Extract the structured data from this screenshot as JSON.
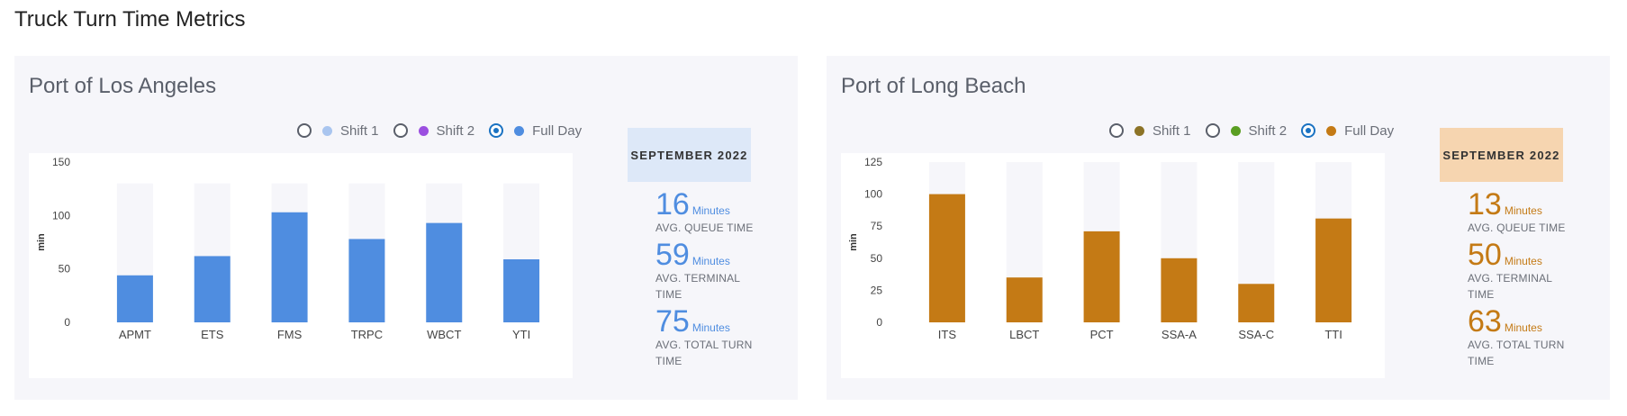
{
  "page_title": "Truck Turn Time Metrics",
  "panels": [
    {
      "title": "Port of Los Angeles",
      "legend": [
        {
          "label": "Shift 1",
          "color": "#a9c5ef",
          "checked": false
        },
        {
          "label": "Shift 2",
          "color": "#9b4fe0",
          "checked": false
        },
        {
          "label": "Full Day",
          "color": "#4f8de0",
          "checked": true
        }
      ],
      "month": "SEPTEMBER 2022",
      "month_bg": "#dde8f8",
      "metrics": [
        {
          "value": "16",
          "unit": "Minutes",
          "label": "AVG. QUEUE TIME"
        },
        {
          "value": "59",
          "unit": "Minutes",
          "label": "AVG. TERMINAL TIME"
        },
        {
          "value": "75",
          "unit": "Minutes",
          "label": "AVG. TOTAL TURN TIME"
        }
      ]
    },
    {
      "title": "Port of Long Beach",
      "legend": [
        {
          "label": "Shift 1",
          "color": "#8c7326",
          "checked": false
        },
        {
          "label": "Shift 2",
          "color": "#5a9e22",
          "checked": false
        },
        {
          "label": "Full Day",
          "color": "#c47a15",
          "checked": true
        }
      ],
      "month": "SEPTEMBER 2022",
      "month_bg": "#f6d5b0",
      "metrics": [
        {
          "value": "13",
          "unit": "Minutes",
          "label": "AVG. QUEUE TIME"
        },
        {
          "value": "50",
          "unit": "Minutes",
          "label": "AVG. TERMINAL TIME"
        },
        {
          "value": "63",
          "unit": "Minutes",
          "label": "AVG. TOTAL TURN TIME"
        }
      ]
    }
  ],
  "chart_data": [
    {
      "type": "bar",
      "ylabel": "min",
      "categories": [
        "APMT",
        "ETS",
        "FMS",
        "TRPC",
        "WBCT",
        "YTI"
      ],
      "values": [
        44,
        62,
        103,
        78,
        93,
        59
      ],
      "background_max": 130,
      "ylim": [
        0,
        150
      ],
      "yticks": [
        0,
        50,
        100,
        150
      ],
      "color": "#4f8de0",
      "track_color": "#f6f6fa"
    },
    {
      "type": "bar",
      "ylabel": "min",
      "categories": [
        "ITS",
        "LBCT",
        "PCT",
        "SSA-A",
        "SSA-C",
        "TTI"
      ],
      "values": [
        100,
        35,
        71,
        50,
        30,
        81
      ],
      "background_max": 125,
      "ylim": [
        0,
        125
      ],
      "yticks": [
        0,
        25,
        50,
        75,
        100,
        125
      ],
      "color": "#c47a15",
      "track_color": "#f6f6fa"
    }
  ]
}
